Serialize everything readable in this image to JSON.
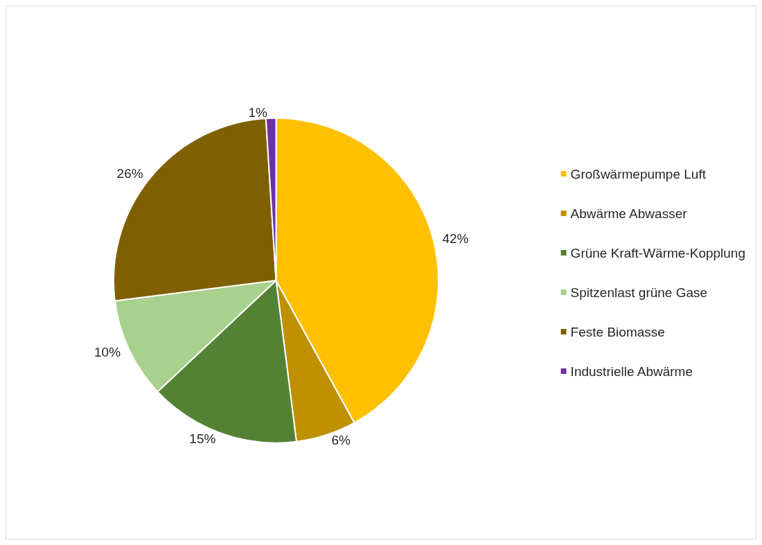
{
  "chart_data": {
    "type": "pie",
    "categories": [
      "Großwärmepumpe Luft",
      "Abwärme Abwasser",
      "Grüne Kraft-Wärme-Kopplung",
      "Spitzenlast grüne Gase",
      "Feste Biomasse",
      "Industrielle Abwärme"
    ],
    "values": [
      42,
      6,
      15,
      10,
      26,
      1
    ],
    "colors": [
      "#ffc000",
      "#bf9000",
      "#548235",
      "#a9d18e",
      "#7f6000",
      "#7030a0"
    ],
    "value_labels": [
      "42%",
      "6%",
      "15%",
      "10%",
      "26%",
      "1%"
    ],
    "legend": "right"
  }
}
